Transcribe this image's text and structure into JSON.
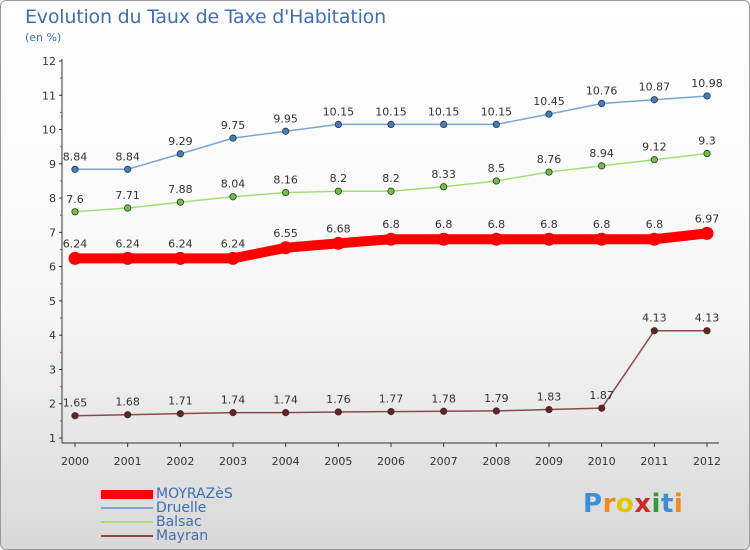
{
  "title": "Evolution du Taux de Taxe d'Habitation",
  "subtitle": "(en %)",
  "logo": {
    "letters": [
      "P",
      "r",
      "o",
      "x",
      "i",
      "t",
      "i"
    ],
    "colors": [
      "#3a8fd6",
      "#f08a1c",
      "#e2c400",
      "#cc2b2b",
      "#2f9e3a",
      "#3a8fd6",
      "#f08a1c"
    ]
  },
  "chart_data": {
    "type": "line",
    "x": [
      "2000",
      "2001",
      "2002",
      "2003",
      "2004",
      "2005",
      "2006",
      "2007",
      "2008",
      "2009",
      "2010",
      "2011",
      "2012"
    ],
    "ylim": [
      1,
      12
    ],
    "yticks": [
      1,
      2,
      3,
      4,
      5,
      6,
      7,
      8,
      9,
      10,
      11,
      12
    ],
    "grid": false,
    "legend_position": "bottom-left",
    "series": [
      {
        "name": "Druelle",
        "color": "#7aa6d4",
        "marker_color": "#3f7fc0",
        "values": [
          8.84,
          8.84,
          9.29,
          9.75,
          9.95,
          10.15,
          10.15,
          10.15,
          10.15,
          10.45,
          10.76,
          10.87,
          10.98
        ],
        "labels": [
          "8.84",
          "8.84",
          "9.29",
          "9.75",
          "9.95",
          "10.15",
          "10.15",
          "10.15",
          "10.15",
          "10.45",
          "10.76",
          "10.87",
          "10.98"
        ]
      },
      {
        "name": "Balsac",
        "color": "#a6dc78",
        "marker_color": "#6cc23c",
        "values": [
          7.6,
          7.71,
          7.88,
          8.04,
          8.16,
          8.2,
          8.2,
          8.33,
          8.5,
          8.76,
          8.94,
          9.12,
          9.3
        ],
        "labels": [
          "7.6",
          "7.71",
          "7.88",
          "8.04",
          "8.16",
          "8.2",
          "8.2",
          "8.33",
          "8.5",
          "8.76",
          "8.94",
          "9.12",
          "9.3"
        ]
      },
      {
        "name": "MOYRAZèS",
        "color": "#ff0000",
        "marker_color": "#ff0000",
        "thick": true,
        "values": [
          6.24,
          6.24,
          6.24,
          6.24,
          6.55,
          6.68,
          6.8,
          6.8,
          6.8,
          6.8,
          6.8,
          6.8,
          6.97
        ],
        "labels": [
          "6.24",
          "6.24",
          "6.24",
          "6.24",
          "6.55",
          "6.68",
          "6.8",
          "6.8",
          "6.8",
          "6.8",
          "6.8",
          "6.8",
          "6.97"
        ]
      },
      {
        "name": "Mayran",
        "color": "#8a4a4a",
        "marker_color": "#6b1f1f",
        "values": [
          1.65,
          1.68,
          1.71,
          1.74,
          1.74,
          1.76,
          1.77,
          1.78,
          1.79,
          1.83,
          1.87,
          4.13,
          4.13
        ],
        "labels": [
          "1.65",
          "1.68",
          "1.71",
          "1.74",
          "1.74",
          "1.76",
          "1.77",
          "1.78",
          "1.79",
          "1.83",
          "1.87",
          "4.13",
          "4.13"
        ]
      }
    ]
  },
  "legend": [
    {
      "label": "MOYRAZèS",
      "color": "#ff0000",
      "thick": true
    },
    {
      "label": "Druelle",
      "color": "#7aa6d4",
      "thick": false
    },
    {
      "label": "Balsac",
      "color": "#a6dc78",
      "thick": false
    },
    {
      "label": "Mayran",
      "color": "#8a4a4a",
      "thick": false
    }
  ]
}
